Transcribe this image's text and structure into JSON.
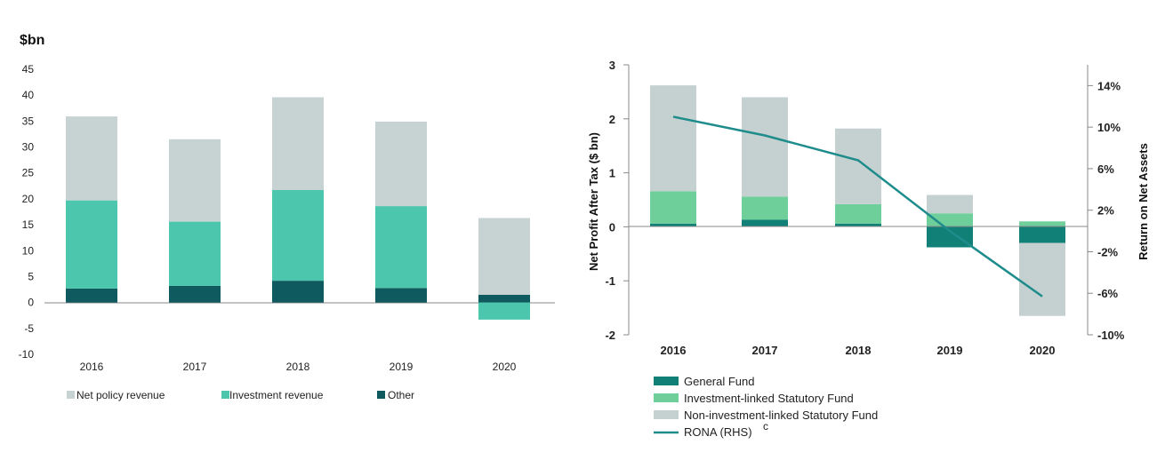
{
  "colors": {
    "net_policy": "#c7d2d2",
    "investment": "#4cc6ad",
    "other": "#0f5a5e",
    "general_fund": "#118076",
    "investment_linked": "#6fcf9a",
    "non_investment_linked": "#c5d1d1",
    "rona_line": "#1f8c8c",
    "axis": "#888888"
  },
  "chart_data": [
    {
      "type": "bar",
      "stacked": true,
      "title": "$bn",
      "xlabel": "",
      "ylabel": "",
      "categories": [
        "2016",
        "2017",
        "2018",
        "2019",
        "2020"
      ],
      "ylim": [
        -10,
        45
      ],
      "yticks": [
        45,
        40,
        35,
        30,
        25,
        20,
        15,
        10,
        5,
        0,
        -5,
        -10
      ],
      "series": [
        {
          "name": "Other",
          "values": [
            2.7,
            3.2,
            4.2,
            2.8,
            1.5
          ]
        },
        {
          "name": "Investment revenue",
          "values": [
            17.0,
            12.4,
            17.5,
            15.8,
            -3.3
          ]
        },
        {
          "name": "Net policy revenue",
          "values": [
            16.2,
            15.9,
            17.9,
            16.3,
            14.8
          ]
        }
      ],
      "legend": [
        "Net policy revenue",
        "Investment revenue",
        "Other"
      ]
    },
    {
      "type": "bar",
      "stacked": true,
      "title": "",
      "ylabel": "Net Profit After Tax ($ bn)",
      "y2label": "Return on Net Assets",
      "categories": [
        "2016",
        "2017",
        "2018",
        "2019",
        "2020"
      ],
      "ylim": [
        -2,
        3
      ],
      "yticks": [
        3,
        2,
        1,
        0,
        -1,
        -2
      ],
      "y2lim": [
        -10,
        16
      ],
      "y2ticks": [
        "14%",
        "10%",
        "6%",
        "2%",
        "-2%",
        "-6%",
        "-10%"
      ],
      "series": [
        {
          "name": "General Fund",
          "values": [
            0.06,
            0.13,
            0.06,
            -0.38,
            -0.3
          ]
        },
        {
          "name": "Investment-linked Statutory Fund",
          "values": [
            0.6,
            0.43,
            0.36,
            0.25,
            0.1
          ]
        },
        {
          "name": "Non-investment-linked Statutory Fund",
          "values": [
            1.96,
            1.84,
            1.4,
            0.34,
            -1.35
          ]
        }
      ],
      "line": {
        "name": "RONA (RHS)",
        "values": [
          11.0,
          9.2,
          6.8,
          0.0,
          -6.3
        ]
      },
      "legend": [
        "General Fund",
        "Investment-linked Statutory Fund",
        "Non-investment-linked Statutory Fund",
        "RONA (RHS)"
      ],
      "legend_superscript": "c"
    }
  ]
}
